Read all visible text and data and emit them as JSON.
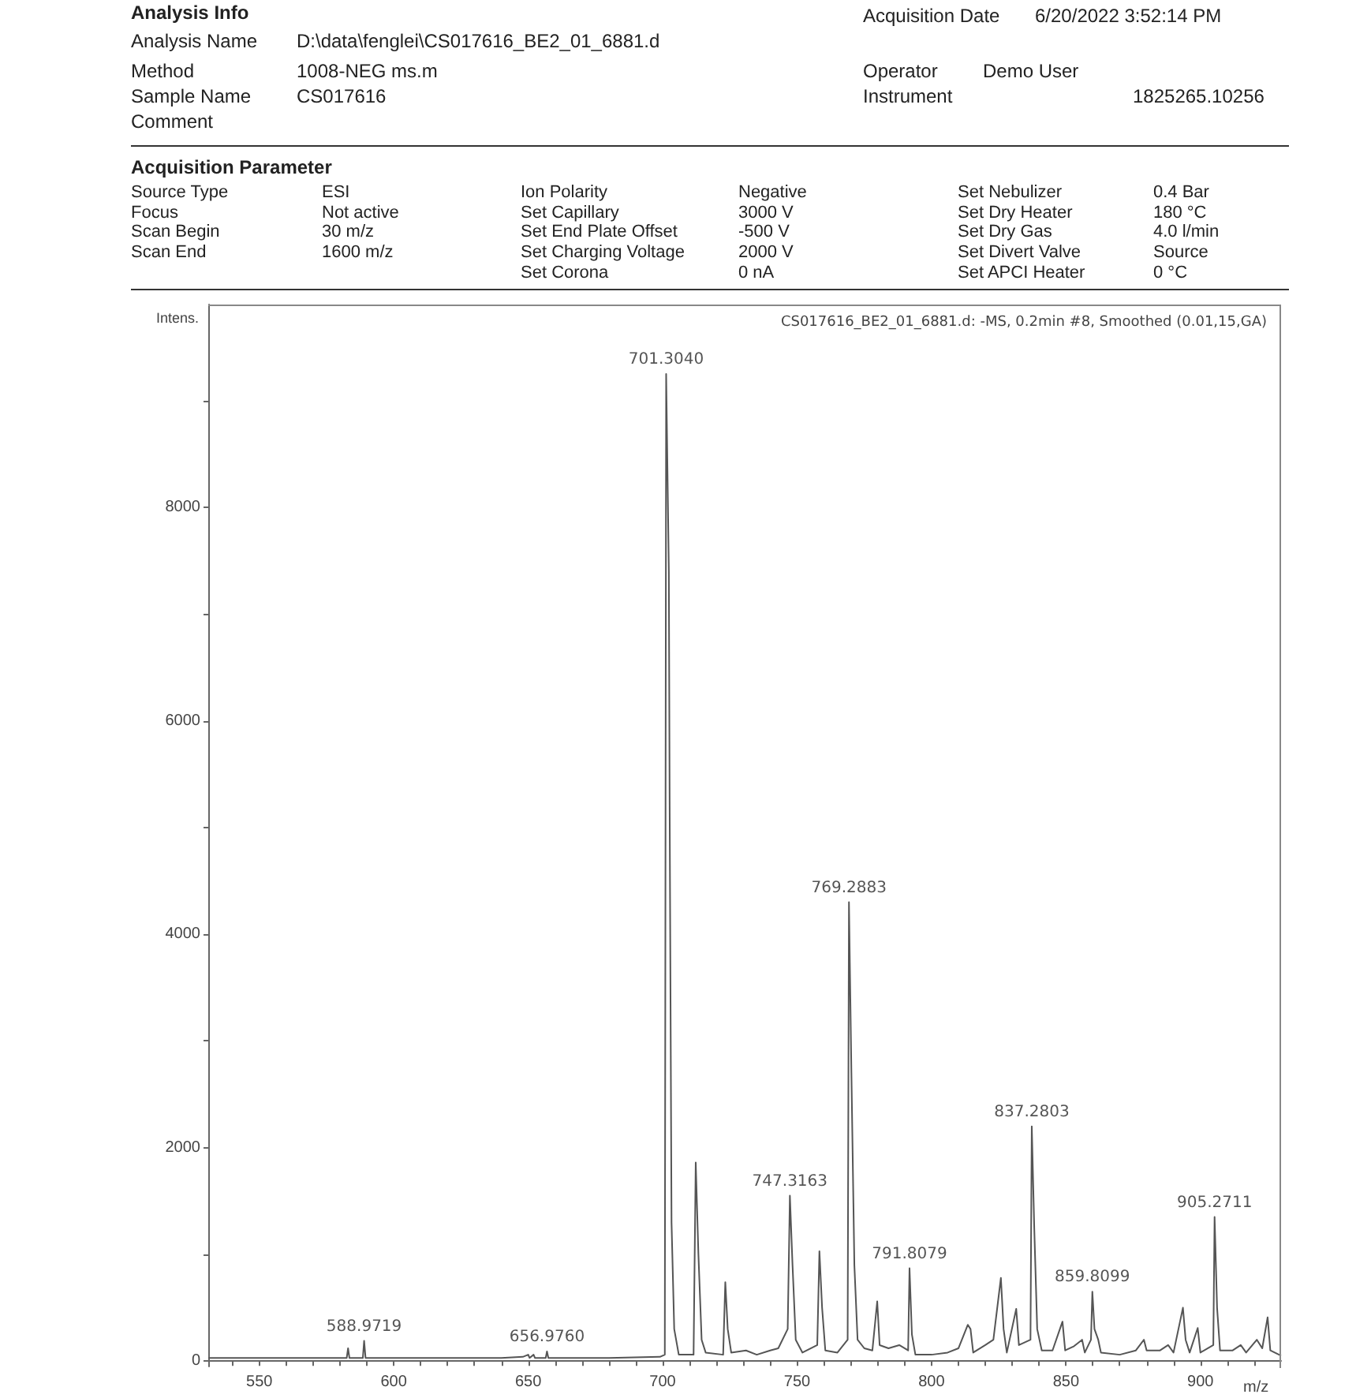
{
  "chart_data": {
    "type": "line",
    "title": "CS017616_BE2_01_6881.d: -MS, 0.2min #8, Smoothed (0.01,15,GA)",
    "xlabel": "m/z",
    "ylabel": "Intens.",
    "annotations": [
      "Analysis Info",
      "Analysis Name",
      "D:\\data\\fenglei\\CS017616_BE2_01_6881.d",
      "Method",
      "1008-NEG ms.m",
      "Sample Name",
      "CS017616",
      "Comment",
      "Acquisition Date",
      "6/20/2022 3:52:14 PM",
      "Operator",
      "Demo User",
      "Instrument",
      "1825265.10256",
      "Acquisition Parameter",
      "Source Type",
      "ESI",
      "Ion Polarity",
      "Negative",
      "Set Nebulizer",
      "0.4 Bar",
      "Focus",
      "Not active",
      "Set Capillary",
      "3000 V",
      "Set Dry Heater",
      "180 °C",
      "Scan Begin",
      "30 m/z",
      "Set End Plate Offset",
      "-500 V",
      "Set Dry Gas",
      "4.0 l/min",
      "Scan End",
      "1600 m/z",
      "Set Charging Voltage",
      "2000 V",
      "Set Divert Valve",
      "Source",
      "Set Corona",
      "0 nA",
      "Set APCI Heater",
      "0 °C",
      {
        "text": "588.9719",
        "x": 588.97,
        "y": 190
      },
      {
        "text": "656.9760",
        "x": 656.98,
        "y": 90
      },
      {
        "text": "701.3040",
        "x": 701.3,
        "y": 9250
      },
      {
        "text": "747.3163",
        "x": 747.32,
        "y": 1550
      },
      {
        "text": "769.2883",
        "x": 769.29,
        "y": 4300
      },
      {
        "text": "791.8079",
        "x": 791.81,
        "y": 870
      },
      {
        "text": "837.2803",
        "x": 837.28,
        "y": 2200
      },
      {
        "text": "859.8099",
        "x": 859.81,
        "y": 650
      },
      {
        "text": "905.2711",
        "x": 905.27,
        "y": 1350
      }
    ],
    "x": [
      531,
      545,
      560,
      575,
      582.5,
      583,
      583.5,
      588.5,
      588.97,
      589.5,
      600,
      620,
      640,
      648,
      650,
      650.5,
      652,
      652.5,
      656.5,
      656.98,
      657.5,
      680,
      699,
      700.8,
      701.3,
      702.3,
      702.6,
      703.3,
      704.3,
      706,
      711.5,
      712.3,
      713.3,
      714.5,
      716,
      722.5,
      723.3,
      724.2,
      725.5,
      731,
      735,
      740,
      743,
      746.5,
      747.32,
      748.3,
      749.5,
      752,
      757.5,
      758.3,
      759.3,
      760.5,
      765,
      768.8,
      769.29,
      770.2,
      771.3,
      772.5,
      775,
      778,
      779.8,
      780.7,
      784,
      788,
      791.3,
      791.81,
      792.7,
      794,
      800,
      806,
      810,
      813.5,
      814.5,
      815.5,
      820,
      823,
      825.8,
      826.8,
      828,
      831.5,
      832.5,
      836.8,
      837.28,
      838.2,
      839.3,
      841,
      845,
      848.7,
      849.7,
      853,
      856,
      857,
      859.3,
      859.81,
      860.6,
      862,
      863,
      870,
      876,
      879,
      880,
      885,
      888,
      890,
      893.5,
      894.5,
      896,
      899,
      900,
      904.8,
      905.27,
      906.2,
      907.3,
      912,
      915,
      917,
      921,
      923,
      925,
      926,
      930
    ],
    "series": [
      {
        "color": "#555555",
        "values": [
          30,
          30,
          30,
          30,
          30,
          120,
          30,
          30,
          190,
          30,
          30,
          30,
          30,
          40,
          60,
          30,
          60,
          30,
          30,
          90,
          30,
          30,
          40,
          60,
          9250,
          7400,
          5200,
          1300,
          300,
          60,
          60,
          1860,
          1000,
          200,
          80,
          60,
          740,
          300,
          80,
          100,
          60,
          100,
          120,
          300,
          1550,
          900,
          200,
          80,
          150,
          1030,
          500,
          100,
          80,
          200,
          4300,
          2700,
          900,
          200,
          120,
          100,
          560,
          150,
          120,
          150,
          100,
          870,
          250,
          60,
          60,
          80,
          120,
          340,
          300,
          80,
          150,
          200,
          780,
          300,
          80,
          490,
          150,
          200,
          2200,
          1250,
          300,
          100,
          100,
          370,
          100,
          140,
          200,
          80,
          200,
          650,
          300,
          200,
          80,
          60,
          100,
          200,
          100,
          100,
          150,
          80,
          500,
          200,
          80,
          310,
          80,
          150,
          1350,
          500,
          100,
          100,
          150,
          80,
          200,
          120,
          410,
          100,
          50
        ]
      }
    ],
    "xlim": [
      531,
      930
    ],
    "ylim": [
      -50,
      9900
    ],
    "xticks": [
      {
        "value": 540,
        "label": null
      },
      550,
      {
        "value": 560,
        "label": null
      },
      {
        "value": 570,
        "label": null
      },
      {
        "value": 580,
        "label": null
      },
      {
        "value": 590,
        "label": null
      },
      600,
      {
        "value": 610,
        "label": null
      },
      {
        "value": 620,
        "label": null
      },
      {
        "value": 630,
        "label": null
      },
      {
        "value": 640,
        "label": null
      },
      650,
      {
        "value": 660,
        "label": null
      },
      {
        "value": 670,
        "label": null
      },
      {
        "value": 680,
        "label": null
      },
      {
        "value": 690,
        "label": null
      },
      700,
      {
        "value": 710,
        "label": null
      },
      {
        "value": 720,
        "label": null
      },
      {
        "value": 730,
        "label": null
      },
      {
        "value": 740,
        "label": null
      },
      750,
      {
        "value": 760,
        "label": null
      },
      {
        "value": 770,
        "label": null
      },
      {
        "value": 780,
        "label": null
      },
      {
        "value": 790,
        "label": null
      },
      800,
      {
        "value": 810,
        "label": null
      },
      {
        "value": 820,
        "label": null
      },
      {
        "value": 830,
        "label": null
      },
      {
        "value": 840,
        "label": null
      },
      850,
      {
        "value": 860,
        "label": null
      },
      {
        "value": 870,
        "label": null
      },
      {
        "value": 880,
        "label": null
      },
      {
        "value": 890,
        "label": null
      },
      900,
      {
        "value": 910,
        "label": null
      },
      {
        "value": 920,
        "label": null
      }
    ],
    "yticks": [
      0,
      {
        "value": 1000,
        "label": null
      },
      2000,
      {
        "value": 3000,
        "label": null
      },
      4000,
      {
        "value": 5000,
        "label": null
      },
      6000,
      {
        "value": 7000,
        "label": null
      },
      8000,
      {
        "value": 9000,
        "label": null
      }
    ],
    "grid": false,
    "marker": "none",
    "line_style": "solid"
  }
}
